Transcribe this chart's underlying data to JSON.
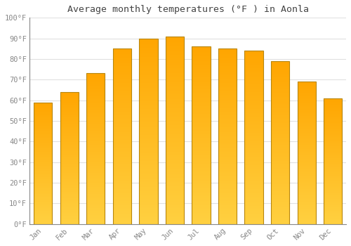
{
  "title": "Average monthly temperatures (°F ) in Aonla",
  "months": [
    "Jan",
    "Feb",
    "Mar",
    "Apr",
    "May",
    "Jun",
    "Jul",
    "Aug",
    "Sep",
    "Oct",
    "Nov",
    "Dec"
  ],
  "values": [
    59,
    64,
    73,
    85,
    90,
    91,
    86,
    85,
    84,
    79,
    69,
    61
  ],
  "bar_color_top": "#FFA500",
  "bar_color_bottom": "#FFD040",
  "bar_edge_color": "#B8860B",
  "background_color": "#ffffff",
  "grid_color": "#e0e0e0",
  "tick_label_color": "#888888",
  "title_color": "#444444",
  "ylim": [
    0,
    100
  ],
  "yticks": [
    0,
    10,
    20,
    30,
    40,
    50,
    60,
    70,
    80,
    90,
    100
  ],
  "ytick_labels": [
    "0°F",
    "10°F",
    "20°F",
    "30°F",
    "40°F",
    "50°F",
    "60°F",
    "70°F",
    "80°F",
    "90°F",
    "100°F"
  ]
}
